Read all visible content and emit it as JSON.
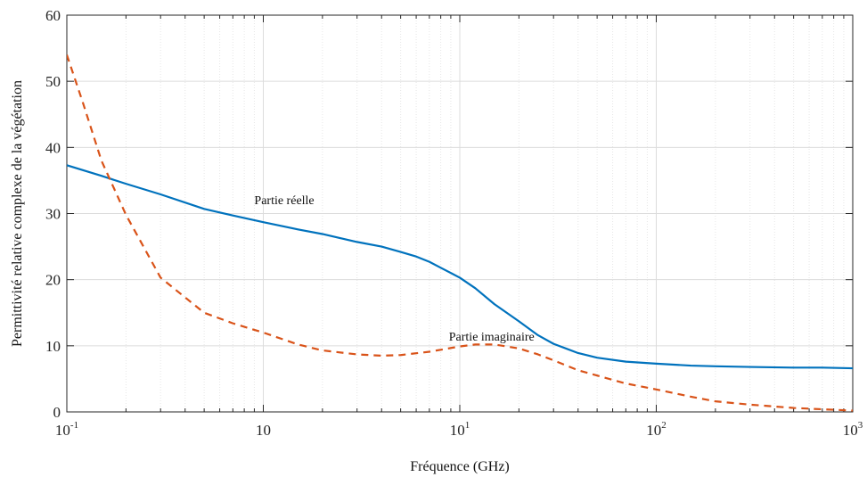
{
  "chart_data": {
    "type": "line",
    "xscale": "log",
    "xlim": [
      0.1,
      1000
    ],
    "ylim": [
      0,
      60
    ],
    "xlabel": "Fréquence (GHz)",
    "ylabel": "Permittivité relative complexe de la végétation",
    "x_tick_labels": [
      {
        "base": "10",
        "exp": "-1"
      },
      {
        "base": "10",
        "exp": ""
      },
      {
        "base": "10",
        "exp": "1"
      },
      {
        "base": "10",
        "exp": "2"
      },
      {
        "base": "10",
        "exp": "3"
      }
    ],
    "y_ticks": [
      0,
      10,
      20,
      30,
      40,
      50,
      60
    ],
    "grid": true,
    "annotations": [
      {
        "text": "Partie réelle",
        "x": 0.9,
        "y": 31.4
      },
      {
        "text": "Partie imaginaire",
        "x": 8.8,
        "y": 10.8
      }
    ],
    "series": [
      {
        "name": "Partie réelle",
        "style": "solid",
        "color": "#0072BD",
        "x": [
          0.1,
          0.15,
          0.2,
          0.3,
          0.5,
          0.7,
          1,
          1.5,
          2,
          3,
          4,
          5,
          6,
          7,
          8,
          10,
          12,
          15,
          20,
          25,
          30,
          40,
          50,
          70,
          100,
          150,
          200,
          300,
          500,
          700,
          1000
        ],
        "y": [
          37.3,
          35.7,
          34.5,
          32.9,
          30.7,
          29.7,
          28.7,
          27.6,
          26.9,
          25.7,
          25,
          24.2,
          23.5,
          22.7,
          21.8,
          20.3,
          18.7,
          16.3,
          13.7,
          11.6,
          10.3,
          8.9,
          8.2,
          7.6,
          7.3,
          7,
          6.9,
          6.8,
          6.7,
          6.7,
          6.6
        ]
      },
      {
        "name": "Partie imaginaire",
        "style": "dashed",
        "color": "#D95319",
        "x": [
          0.1,
          0.12,
          0.15,
          0.2,
          0.3,
          0.5,
          0.7,
          1,
          1.5,
          2,
          3,
          4,
          5,
          7,
          10,
          12,
          15,
          20,
          25,
          30,
          40,
          50,
          70,
          100,
          150,
          200,
          300,
          500,
          700,
          1000
        ],
        "y": [
          54,
          47,
          38,
          29.8,
          20.3,
          15,
          13.4,
          12,
          10.2,
          9.3,
          8.7,
          8.5,
          8.6,
          9.1,
          9.9,
          10.2,
          10.2,
          9.6,
          8.7,
          7.8,
          6.3,
          5.5,
          4.3,
          3.4,
          2.3,
          1.6,
          1.1,
          0.6,
          0.4,
          0.2
        ]
      }
    ]
  }
}
